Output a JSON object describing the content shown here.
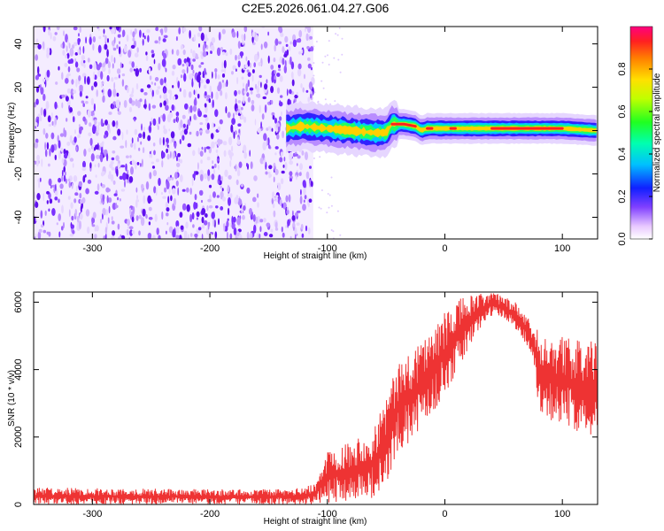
{
  "chart_data": [
    {
      "type": "heatmap",
      "title": "C2E5.2026.061.04.27.G06",
      "xlabel": "Height of straight line (km)",
      "ylabel": "Frequency (Hz)",
      "xlim": [
        -350,
        130
      ],
      "ylim": [
        -50,
        48
      ],
      "x_ticks": [
        -300,
        -200,
        -100,
        0,
        100
      ],
      "y_ticks": [
        -40,
        -20,
        0,
        20,
        40
      ],
      "noise_region_x": [
        -350,
        -112
      ],
      "signal_track": {
        "x": [
          -135,
          -120,
          -100,
          -80,
          -60,
          -50,
          -45,
          -35,
          -25,
          -20,
          -15,
          -5,
          0,
          10,
          30,
          60,
          90,
          100,
          130
        ],
        "freq": [
          1,
          2,
          1,
          0,
          -1,
          -1,
          3,
          3,
          2,
          0,
          1,
          1,
          1,
          1,
          1,
          1,
          1,
          1,
          0
        ]
      },
      "colorbar": {
        "label": "Normalized spectral amplitude",
        "range": [
          0,
          1
        ],
        "ticks": [
          0.0,
          0.2,
          0.4,
          0.6,
          0.8
        ]
      }
    },
    {
      "type": "line",
      "xlabel": "Height of straight line (km)",
      "ylabel": "SNR (10 * v/v)",
      "xlim": [
        -350,
        130
      ],
      "ylim": [
        0,
        6300
      ],
      "x_ticks": [
        -300,
        -200,
        -100,
        0,
        100
      ],
      "y_ticks": [
        0,
        2000,
        4000,
        6000
      ],
      "color": "#ee3333",
      "envelope": {
        "x": [
          -350,
          -200,
          -130,
          -110,
          -100,
          -80,
          -60,
          -50,
          -40,
          -30,
          -20,
          -10,
          0,
          10,
          20,
          30,
          40,
          50,
          60,
          70,
          75,
          80,
          90,
          100,
          110,
          120,
          130
        ],
        "low": [
          0,
          0,
          0,
          0,
          50,
          100,
          200,
          300,
          1600,
          1800,
          2200,
          2700,
          3300,
          3800,
          4600,
          5200,
          5600,
          5500,
          5200,
          4700,
          4300,
          2800,
          2500,
          2300,
          2200,
          2100,
          2000
        ],
        "high": [
          500,
          450,
          450,
          600,
          1700,
          1900,
          2300,
          3400,
          4100,
          4600,
          5000,
          5200,
          5700,
          6100,
          6200,
          6250,
          6300,
          6200,
          6000,
          5600,
          5200,
          5200,
          5100,
          5000,
          4900,
          4850,
          4900
        ]
      }
    }
  ]
}
